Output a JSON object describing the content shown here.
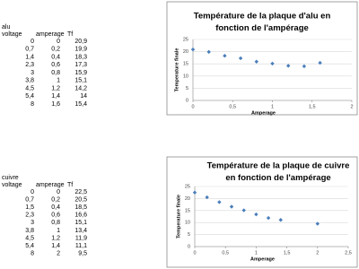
{
  "tables": [
    {
      "label": "alu",
      "header": [
        "voltage",
        "amperage",
        "Tf"
      ],
      "rows": [
        [
          "0",
          "0",
          "20,9"
        ],
        [
          "0,7",
          "0,2",
          "19,9"
        ],
        [
          "1,4",
          "0,4",
          "18,3"
        ],
        [
          "2,3",
          "0,6",
          "17,3"
        ],
        [
          "3",
          "0,8",
          "15,9"
        ],
        [
          "3,8",
          "1",
          "15,1"
        ],
        [
          "4,5",
          "1,2",
          "14,2"
        ],
        [
          "5,4",
          "1,4",
          "14"
        ],
        [
          "8",
          "1,6",
          "15,4"
        ]
      ]
    },
    {
      "label": "cuivre",
      "header": [
        "voltage",
        "amperage",
        "Tf"
      ],
      "rows": [
        [
          "0",
          "0",
          "22,5"
        ],
        [
          "0,7",
          "0,2",
          "20,5"
        ],
        [
          "1,5",
          "0,4",
          "18,5"
        ],
        [
          "2,3",
          "0,6",
          "16,6"
        ],
        [
          "3",
          "0,8",
          "15,1"
        ],
        [
          "3,8",
          "1",
          "13,4"
        ],
        [
          "4,5",
          "1,2",
          "11,9"
        ],
        [
          "5,4",
          "1,4",
          "11,1"
        ],
        [
          "8",
          "2",
          "9,5"
        ]
      ]
    }
  ],
  "charts": [
    {
      "type": "scatter",
      "title": [
        "Température de la plaque d'alu en",
        "fonction de l'ampérage"
      ],
      "x_label": "Amperage",
      "y_label": "Temperature finale",
      "color": "#4a7ebb",
      "grid": true,
      "x": [
        0,
        0.2,
        0.4,
        0.6,
        0.8,
        1,
        1.2,
        1.4,
        1.6
      ],
      "values": [
        20.9,
        19.9,
        18.3,
        17.3,
        15.9,
        15.1,
        14.2,
        14,
        15.4
      ],
      "xlim": [
        0,
        2
      ],
      "xticks": [
        0,
        {
          "value": 0.5,
          "label": "0,5"
        },
        1,
        {
          "value": 1.5,
          "label": "1,5"
        },
        2
      ],
      "ylim": [
        0,
        25
      ],
      "yticks": [
        0,
        5,
        10,
        15,
        20,
        25
      ]
    },
    {
      "type": "scatter",
      "title": [
        "Température de la plaque de cuivre",
        "en fonction de l'ampérage"
      ],
      "x_label": "Amperage",
      "y_label": "Temperature finale",
      "color": "#4a7ebb",
      "grid": true,
      "x": [
        0,
        0.2,
        0.4,
        0.6,
        0.8,
        1,
        1.2,
        1.4,
        2
      ],
      "values": [
        22.5,
        20.5,
        18.5,
        16.6,
        15.1,
        13.4,
        11.9,
        11.1,
        9.5
      ],
      "xlim": [
        0,
        2.5
      ],
      "xticks": [
        0,
        {
          "value": 0.5,
          "label": "0,5"
        },
        1,
        {
          "value": 1.5,
          "label": "1,5"
        },
        2,
        {
          "value": 2.5,
          "label": "2,5"
        }
      ],
      "ylim": [
        0,
        25
      ],
      "yticks": [
        0,
        5,
        10,
        15,
        20,
        25
      ]
    }
  ]
}
